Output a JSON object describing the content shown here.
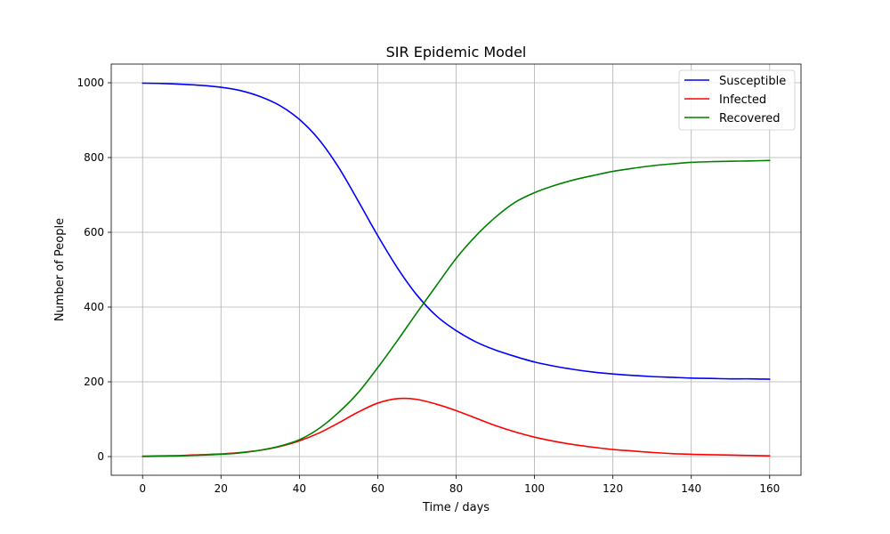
{
  "chart_data": {
    "type": "line",
    "title": "SIR Epidemic Model",
    "xlabel": "Time / days",
    "ylabel": "Number of People",
    "xlim": [
      -8,
      168
    ],
    "ylim": [
      -50,
      1050
    ],
    "xticks": [
      0,
      20,
      40,
      60,
      80,
      100,
      120,
      140,
      160
    ],
    "yticks": [
      0,
      200,
      400,
      600,
      800,
      1000
    ],
    "grid": true,
    "legend_position": "top-right",
    "x": [
      0,
      5,
      10,
      15,
      20,
      25,
      30,
      35,
      40,
      45,
      50,
      55,
      60,
      65,
      70,
      75,
      80,
      85,
      90,
      95,
      100,
      105,
      110,
      115,
      120,
      125,
      130,
      135,
      140,
      145,
      150,
      155,
      160
    ],
    "series": [
      {
        "name": "Susceptible",
        "color": "#0000ff",
        "values": [
          999,
          998,
          996,
          993,
          988,
          979,
          963,
          939,
          902,
          848,
          774,
          684,
          591,
          505,
          432,
          376,
          337,
          307,
          285,
          268,
          253,
          242,
          233,
          226,
          221,
          217,
          214,
          212,
          210,
          209,
          208,
          208,
          207
        ]
      },
      {
        "name": "Infected",
        "color": "#ff0000",
        "values": [
          1,
          2,
          3,
          5,
          7,
          11,
          17,
          27,
          42,
          63,
          90,
          119,
          143,
          155,
          153,
          140,
          123,
          103,
          83,
          66,
          52,
          41,
          32,
          25,
          19,
          15,
          11,
          8,
          6,
          5,
          4,
          3,
          2
        ]
      },
      {
        "name": "Recovered",
        "color": "#008000",
        "values": [
          0,
          1,
          2,
          4,
          6,
          10,
          17,
          28,
          45,
          75,
          118,
          171,
          238,
          310,
          385,
          458,
          530,
          590,
          640,
          680,
          706,
          725,
          740,
          752,
          763,
          771,
          778,
          783,
          787,
          789,
          790,
          791,
          792
        ]
      }
    ]
  }
}
